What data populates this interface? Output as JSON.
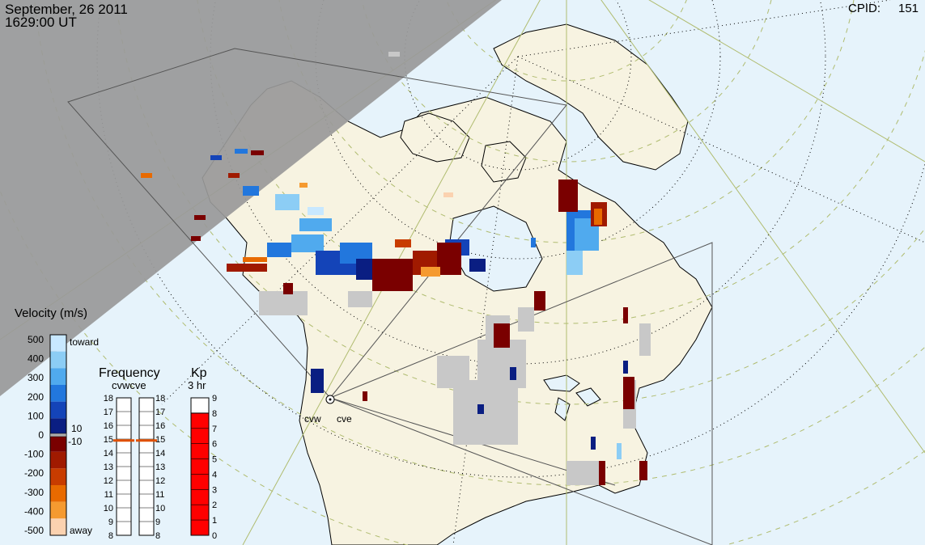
{
  "header": {
    "date": "September, 26 2011",
    "time": "1629:00 UT",
    "cpid_label": "CPID:",
    "cpid_value": "151"
  },
  "velocity_scale": {
    "title": "Velocity (m/s)",
    "ticks": [
      "500",
      "400",
      "300",
      "200",
      "100",
      "0",
      "-100",
      "-200",
      "-300",
      "-400",
      "-500"
    ],
    "toward_label": "toward",
    "away_label": "away",
    "plus_threshold": "10",
    "minus_threshold": "-10",
    "colors": [
      "#c8e8ff",
      "#8ccdf5",
      "#50aaee",
      "#2277dd",
      "#1444b8",
      "#0a1e82",
      "#7a0000",
      "#a01a00",
      "#c83c00",
      "#e86a00",
      "#f59a30",
      "#fbd2b0"
    ]
  },
  "frequency_panel": {
    "title": "Frequency",
    "radar_labels": "cvwcve",
    "ticks": [
      "18",
      "17",
      "16",
      "15",
      "14",
      "13",
      "12",
      "11",
      "10",
      "9",
      "8"
    ],
    "cvw_mhz": 14.9,
    "cve_mhz": 14.9,
    "marker_color": "#e05000"
  },
  "kp_panel": {
    "title": "Kp",
    "subtitle": "3 hr",
    "ticks": [
      "9",
      "8",
      "7",
      "6",
      "5",
      "4",
      "3",
      "2",
      "1",
      "0"
    ],
    "value": 8,
    "fill_color": "#ff0000"
  },
  "radars": {
    "west_label": "cvw",
    "east_label": "cve"
  },
  "colors": {
    "ocean": "#e6f3fb",
    "land": "#f7f3e1",
    "night": "#999999",
    "ground_scatter": "#c8c8c8",
    "grid": "#b0bc70"
  }
}
